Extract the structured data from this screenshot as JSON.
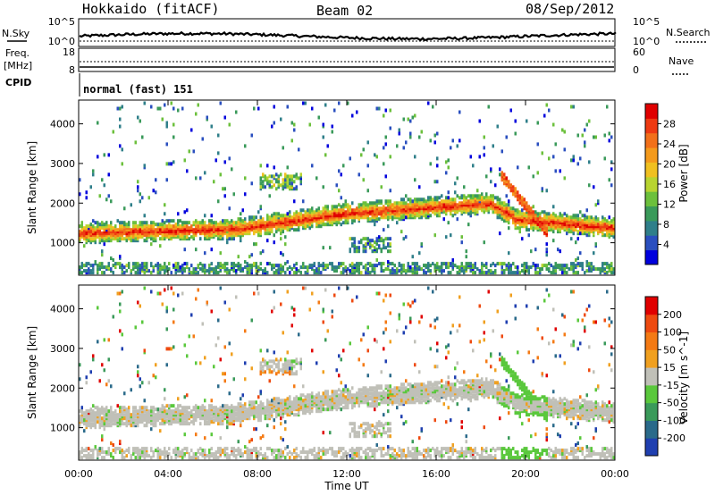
{
  "header": {
    "station": "Hokkaido (fitACF)",
    "beam": "Beam 02",
    "date": "08/Sep/2012"
  },
  "top_panels": {
    "nsky_label": "N.Sky",
    "nsearch_label": "N.Search",
    "nsky_ticks": [
      "10^5",
      "10^0"
    ],
    "nsearch_ticks": [
      "10^5",
      "10^0"
    ],
    "freq_label_1": "Freq.",
    "freq_label_2": "[MHz]",
    "freq_ticks": [
      "18",
      "8"
    ],
    "nave_label": "Nave",
    "nave_ticks": [
      "60",
      "0"
    ],
    "cpid_label": "CPID",
    "cpid_text": "normal (fast) 151"
  },
  "chart_data": [
    {
      "type": "heatmap",
      "title": "",
      "xlabel": "",
      "ylabel": "Slant Range [km]",
      "x_range_hours": [
        0,
        24
      ],
      "ylim_km": [
        180,
        4600
      ],
      "y_ticks": [
        "4000",
        "3000",
        "2000",
        "1000"
      ],
      "colorbar": {
        "label": "Power [dB]",
        "ticks": [
          "28",
          "24",
          "20",
          "16",
          "12",
          "8",
          "4"
        ],
        "colors": [
          "#0000dd",
          "#2a4fbf",
          "#2f7f8a",
          "#3a9a5a",
          "#6cc03c",
          "#b8d430",
          "#f0c020",
          "#f49a1c",
          "#f2701a",
          "#ee3a12",
          "#e00000"
        ]
      }
    },
    {
      "type": "heatmap",
      "title": "",
      "xlabel": "Time UT",
      "ylabel": "Slant Range [km]",
      "x_range_hours": [
        0,
        24
      ],
      "ylim_km": [
        180,
        4600
      ],
      "x_ticks": [
        "00:00",
        "04:00",
        "08:00",
        "12:00",
        "16:00",
        "20:00",
        "00:00"
      ],
      "y_ticks": [
        "4000",
        "3000",
        "2000",
        "1000"
      ],
      "colorbar": {
        "label": "Velocity [m s^-1]",
        "ticks": [
          "200",
          "100",
          "50",
          "15",
          "-15",
          "-50",
          "-100",
          "-200"
        ],
        "colors": [
          "#1f3fb0",
          "#2a6a8a",
          "#3a9a5a",
          "#5ac83c",
          "#c0c0b8",
          "#f0a020",
          "#f47a14",
          "#ee4a10",
          "#e00000"
        ]
      }
    }
  ]
}
